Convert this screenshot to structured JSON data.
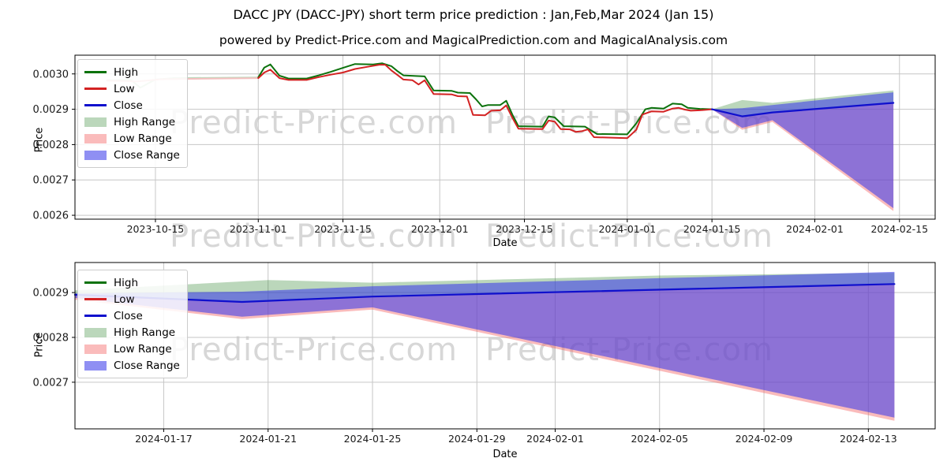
{
  "title": "DACC JPY (DACC-JPY) short term price prediction : Jan,Feb,Mar 2024 (Jan 15)",
  "subtitle": "powered by Predict-Price.com and MagicalPrediction.com and MagicalAnalysis.com",
  "watermark": {
    "text": "Predict-Price.com",
    "color": "#d7d7d7"
  },
  "legend": {
    "items": [
      {
        "label": "High",
        "swatch": "line",
        "color": "#0c720c"
      },
      {
        "label": "Low",
        "swatch": "line",
        "color": "#d32222"
      },
      {
        "label": "Close",
        "swatch": "line",
        "color": "#0f0fcd"
      },
      {
        "label": "High Range",
        "swatch": "patch",
        "color": "rgba(44,130,44,0.32)"
      },
      {
        "label": "Low Range",
        "swatch": "patch",
        "color": "rgba(244,92,92,0.42)"
      },
      {
        "label": "Close Range",
        "swatch": "patch",
        "color": "rgba(62,62,235,0.58)"
      }
    ]
  },
  "chart_data": [
    {
      "type": "line",
      "panel": "top",
      "xlabel": "Date",
      "ylabel": "Price",
      "x_epoch": "day 0 = 2023-10-07",
      "xlim": [
        -5.3,
        136.9
      ],
      "ylim": [
        0.002589,
        0.003053
      ],
      "grid": true,
      "legend_position": "upper-left",
      "xticks": [
        {
          "d": 8,
          "label": "2023-10-15"
        },
        {
          "d": 25,
          "label": "2023-11-01"
        },
        {
          "d": 39,
          "label": "2023-11-15"
        },
        {
          "d": 55,
          "label": "2023-12-01"
        },
        {
          "d": 69,
          "label": "2023-12-15"
        },
        {
          "d": 86,
          "label": "2024-01-01"
        },
        {
          "d": 100,
          "label": "2024-01-15"
        },
        {
          "d": 117,
          "label": "2024-02-01"
        },
        {
          "d": 131,
          "label": "2024-02-15"
        }
      ],
      "yticks": [
        {
          "v": 0.0026,
          "label": "0.0026"
        },
        {
          "v": 0.0027,
          "label": "0.0027"
        },
        {
          "v": 0.0028,
          "label": "0.0028"
        },
        {
          "v": 0.0029,
          "label": "0.0029"
        },
        {
          "v": 0.003,
          "label": "0.0030"
        }
      ],
      "bands": [
        {
          "name": "high-range",
          "fill": "rgba(44,130,44,0.32)",
          "upper": [
            [
              100,
              0.0029
            ],
            [
              105,
              0.002926
            ],
            [
              110,
              0.002918
            ],
            [
              121,
              0.002938
            ],
            [
              130,
              0.002953
            ]
          ],
          "lower": [
            [
              100,
              0.0029
            ],
            [
              105,
              0.00288
            ],
            [
              110,
              0.002891
            ],
            [
              130,
              0.002918
            ]
          ]
        },
        {
          "name": "low-range",
          "fill": "rgba(244,92,92,0.42)",
          "upper": [
            [
              100,
              0.0029
            ],
            [
              105,
              0.00288
            ],
            [
              110,
              0.002891
            ],
            [
              130,
              0.002918
            ]
          ],
          "lower": [
            [
              100,
              0.0029
            ],
            [
              105,
              0.002842
            ],
            [
              110,
              0.002864
            ],
            [
              130,
              0.002612
            ]
          ]
        },
        {
          "name": "close-range",
          "fill": "rgba(62,62,235,0.58)",
          "upper": [
            [
              100,
              0.0029
            ],
            [
              105,
              0.002903
            ],
            [
              110,
              0.002912
            ],
            [
              130,
              0.002948
            ]
          ],
          "lower": [
            [
              100,
              0.0029
            ],
            [
              105,
              0.002847
            ],
            [
              110,
              0.002869
            ],
            [
              130,
              0.00262
            ]
          ]
        }
      ],
      "lines": [
        {
          "name": "high-faded",
          "color": "#bcd9bc",
          "width": 2,
          "points": [
            [
              0,
              0.002982
            ],
            [
              4,
              0.002982
            ],
            [
              5.5,
              0.002961
            ],
            [
              8,
              0.002984
            ],
            [
              11,
              0.002988
            ],
            [
              25,
              0.00299
            ]
          ]
        },
        {
          "name": "low-faded",
          "color": "#f4c0c0",
          "width": 2,
          "points": [
            [
              0,
              0.002981
            ],
            [
              5,
              0.002979
            ],
            [
              9,
              0.002985
            ],
            [
              25,
              0.002988
            ]
          ]
        },
        {
          "name": "high",
          "color": "#0c720c",
          "width": 2,
          "points": [
            [
              25,
              0.00299
            ],
            [
              26,
              0.003018
            ],
            [
              27,
              0.003027
            ],
            [
              28.5,
              0.002995
            ],
            [
              30,
              0.002987
            ],
            [
              33,
              0.002987
            ],
            [
              35,
              0.002996
            ],
            [
              37,
              0.003006
            ],
            [
              39,
              0.003017
            ],
            [
              41,
              0.003028
            ],
            [
              44,
              0.003027
            ],
            [
              45.5,
              0.00303
            ],
            [
              47,
              0.003022
            ],
            [
              48,
              0.003008
            ],
            [
              49,
              0.002996
            ],
            [
              51,
              0.002994
            ],
            [
              52.5,
              0.002993
            ],
            [
              54,
              0.002953
            ],
            [
              57,
              0.002952
            ],
            [
              58,
              0.002947
            ],
            [
              60,
              0.002946
            ],
            [
              61,
              0.002928
            ],
            [
              62,
              0.002908
            ],
            [
              63,
              0.002912
            ],
            [
              65,
              0.002912
            ],
            [
              66,
              0.002924
            ],
            [
              67,
              0.002885
            ],
            [
              68,
              0.002852
            ],
            [
              72,
              0.002851
            ],
            [
              73,
              0.00288
            ],
            [
              74,
              0.002877
            ],
            [
              75.5,
              0.002852
            ],
            [
              79,
              0.002851
            ],
            [
              81,
              0.00283
            ],
            [
              86,
              0.002829
            ],
            [
              87.5,
              0.00286
            ],
            [
              89,
              0.0029
            ],
            [
              90,
              0.002904
            ],
            [
              92,
              0.002902
            ],
            [
              93.5,
              0.002916
            ],
            [
              95,
              0.002914
            ],
            [
              96,
              0.002904
            ],
            [
              98,
              0.002901
            ],
            [
              100,
              0.0029
            ]
          ]
        },
        {
          "name": "low",
          "color": "#d32222",
          "width": 2,
          "points": [
            [
              25,
              0.002988
            ],
            [
              26,
              0.003004
            ],
            [
              27,
              0.003012
            ],
            [
              28.5,
              0.002988
            ],
            [
              30,
              0.002983
            ],
            [
              33,
              0.002983
            ],
            [
              35,
              0.002991
            ],
            [
              37,
              0.002998
            ],
            [
              39,
              0.003004
            ],
            [
              41,
              0.003014
            ],
            [
              43,
              0.00302
            ],
            [
              45,
              0.003026
            ],
            [
              46,
              0.003026
            ],
            [
              47,
              0.00301
            ],
            [
              48,
              0.002997
            ],
            [
              49,
              0.002984
            ],
            [
              50.5,
              0.002982
            ],
            [
              51.5,
              0.00297
            ],
            [
              52.5,
              0.002982
            ],
            [
              54,
              0.002943
            ],
            [
              57,
              0.002942
            ],
            [
              58,
              0.002937
            ],
            [
              59.5,
              0.002936
            ],
            [
              60.5,
              0.002884
            ],
            [
              62.5,
              0.002883
            ],
            [
              63.5,
              0.002896
            ],
            [
              65,
              0.002897
            ],
            [
              66,
              0.002911
            ],
            [
              67,
              0.002876
            ],
            [
              68,
              0.002845
            ],
            [
              72,
              0.002844
            ],
            [
              73,
              0.002868
            ],
            [
              74,
              0.002865
            ],
            [
              75,
              0.002844
            ],
            [
              76.5,
              0.002843
            ],
            [
              77.5,
              0.002836
            ],
            [
              78.5,
              0.002838
            ],
            [
              79.5,
              0.002843
            ],
            [
              80.5,
              0.002821
            ],
            [
              86,
              0.002818
            ],
            [
              87.5,
              0.002842
            ],
            [
              88.5,
              0.002885
            ],
            [
              90,
              0.002894
            ],
            [
              92,
              0.002893
            ],
            [
              93.5,
              0.002902
            ],
            [
              94.5,
              0.002904
            ],
            [
              95.5,
              0.002899
            ],
            [
              96.5,
              0.002896
            ],
            [
              98,
              0.002897
            ],
            [
              100,
              0.0029
            ]
          ]
        },
        {
          "name": "close",
          "color": "#0f0fcd",
          "width": 2.2,
          "points": [
            [
              100,
              0.0029
            ],
            [
              105,
              0.00288
            ],
            [
              110,
              0.002891
            ],
            [
              130,
              0.002918
            ]
          ]
        }
      ]
    },
    {
      "type": "line",
      "panel": "bottom",
      "xlabel": "Date",
      "ylabel": "Price",
      "x_epoch": "day 0 = 2023-10-07",
      "xlim": [
        98.6,
        131.56
      ],
      "ylim": [
        0.002596,
        0.002967
      ],
      "grid": true,
      "legend_position": "upper-left",
      "xticks": [
        {
          "d": 102,
          "label": "2024-01-17"
        },
        {
          "d": 106,
          "label": "2024-01-21"
        },
        {
          "d": 110,
          "label": "2024-01-25"
        },
        {
          "d": 114,
          "label": "2024-01-29"
        },
        {
          "d": 117,
          "label": "2024-02-01"
        },
        {
          "d": 121,
          "label": "2024-02-05"
        },
        {
          "d": 125,
          "label": "2024-02-09"
        },
        {
          "d": 129,
          "label": "2024-02-13"
        }
      ],
      "yticks": [
        {
          "v": 0.0027,
          "label": "0.0027"
        },
        {
          "v": 0.0028,
          "label": "0.0028"
        },
        {
          "v": 0.0029,
          "label": "0.0029"
        }
      ],
      "bands": [
        {
          "name": "high-range",
          "fill": "rgba(44,130,44,0.32)",
          "upper": [
            [
              98.6,
              0.002905
            ],
            [
              106,
              0.002928
            ],
            [
              110,
              0.002922
            ],
            [
              121,
              0.002938
            ],
            [
              130,
              0.002944
            ]
          ],
          "lower": [
            [
              98.6,
              0.002895
            ],
            [
              105,
              0.002879
            ],
            [
              110,
              0.002891
            ],
            [
              130,
              0.002919
            ]
          ]
        },
        {
          "name": "low-range",
          "fill": "rgba(244,92,92,0.42)",
          "upper": [
            [
              98.6,
              0.002895
            ],
            [
              105,
              0.002879
            ],
            [
              110,
              0.002891
            ],
            [
              130,
              0.002919
            ]
          ],
          "lower": [
            [
              98.6,
              0.002884
            ],
            [
              105,
              0.002841
            ],
            [
              110,
              0.002862
            ],
            [
              130,
              0.002614
            ]
          ]
        },
        {
          "name": "close-range",
          "fill": "rgba(62,62,235,0.58)",
          "upper": [
            [
              98.6,
              0.002898
            ],
            [
              105,
              0.002902
            ],
            [
              110,
              0.002914
            ],
            [
              121,
              0.002932
            ],
            [
              130,
              0.002946
            ]
          ],
          "lower": [
            [
              98.6,
              0.002888
            ],
            [
              105,
              0.002846
            ],
            [
              110,
              0.002867
            ],
            [
              130,
              0.002621
            ]
          ]
        }
      ],
      "lines": [
        {
          "name": "close",
          "color": "#0f0fcd",
          "width": 2.2,
          "points": [
            [
              98.6,
              0.002895
            ],
            [
              105,
              0.002879
            ],
            [
              110,
              0.002891
            ],
            [
              130,
              0.002919
            ]
          ]
        }
      ]
    }
  ]
}
